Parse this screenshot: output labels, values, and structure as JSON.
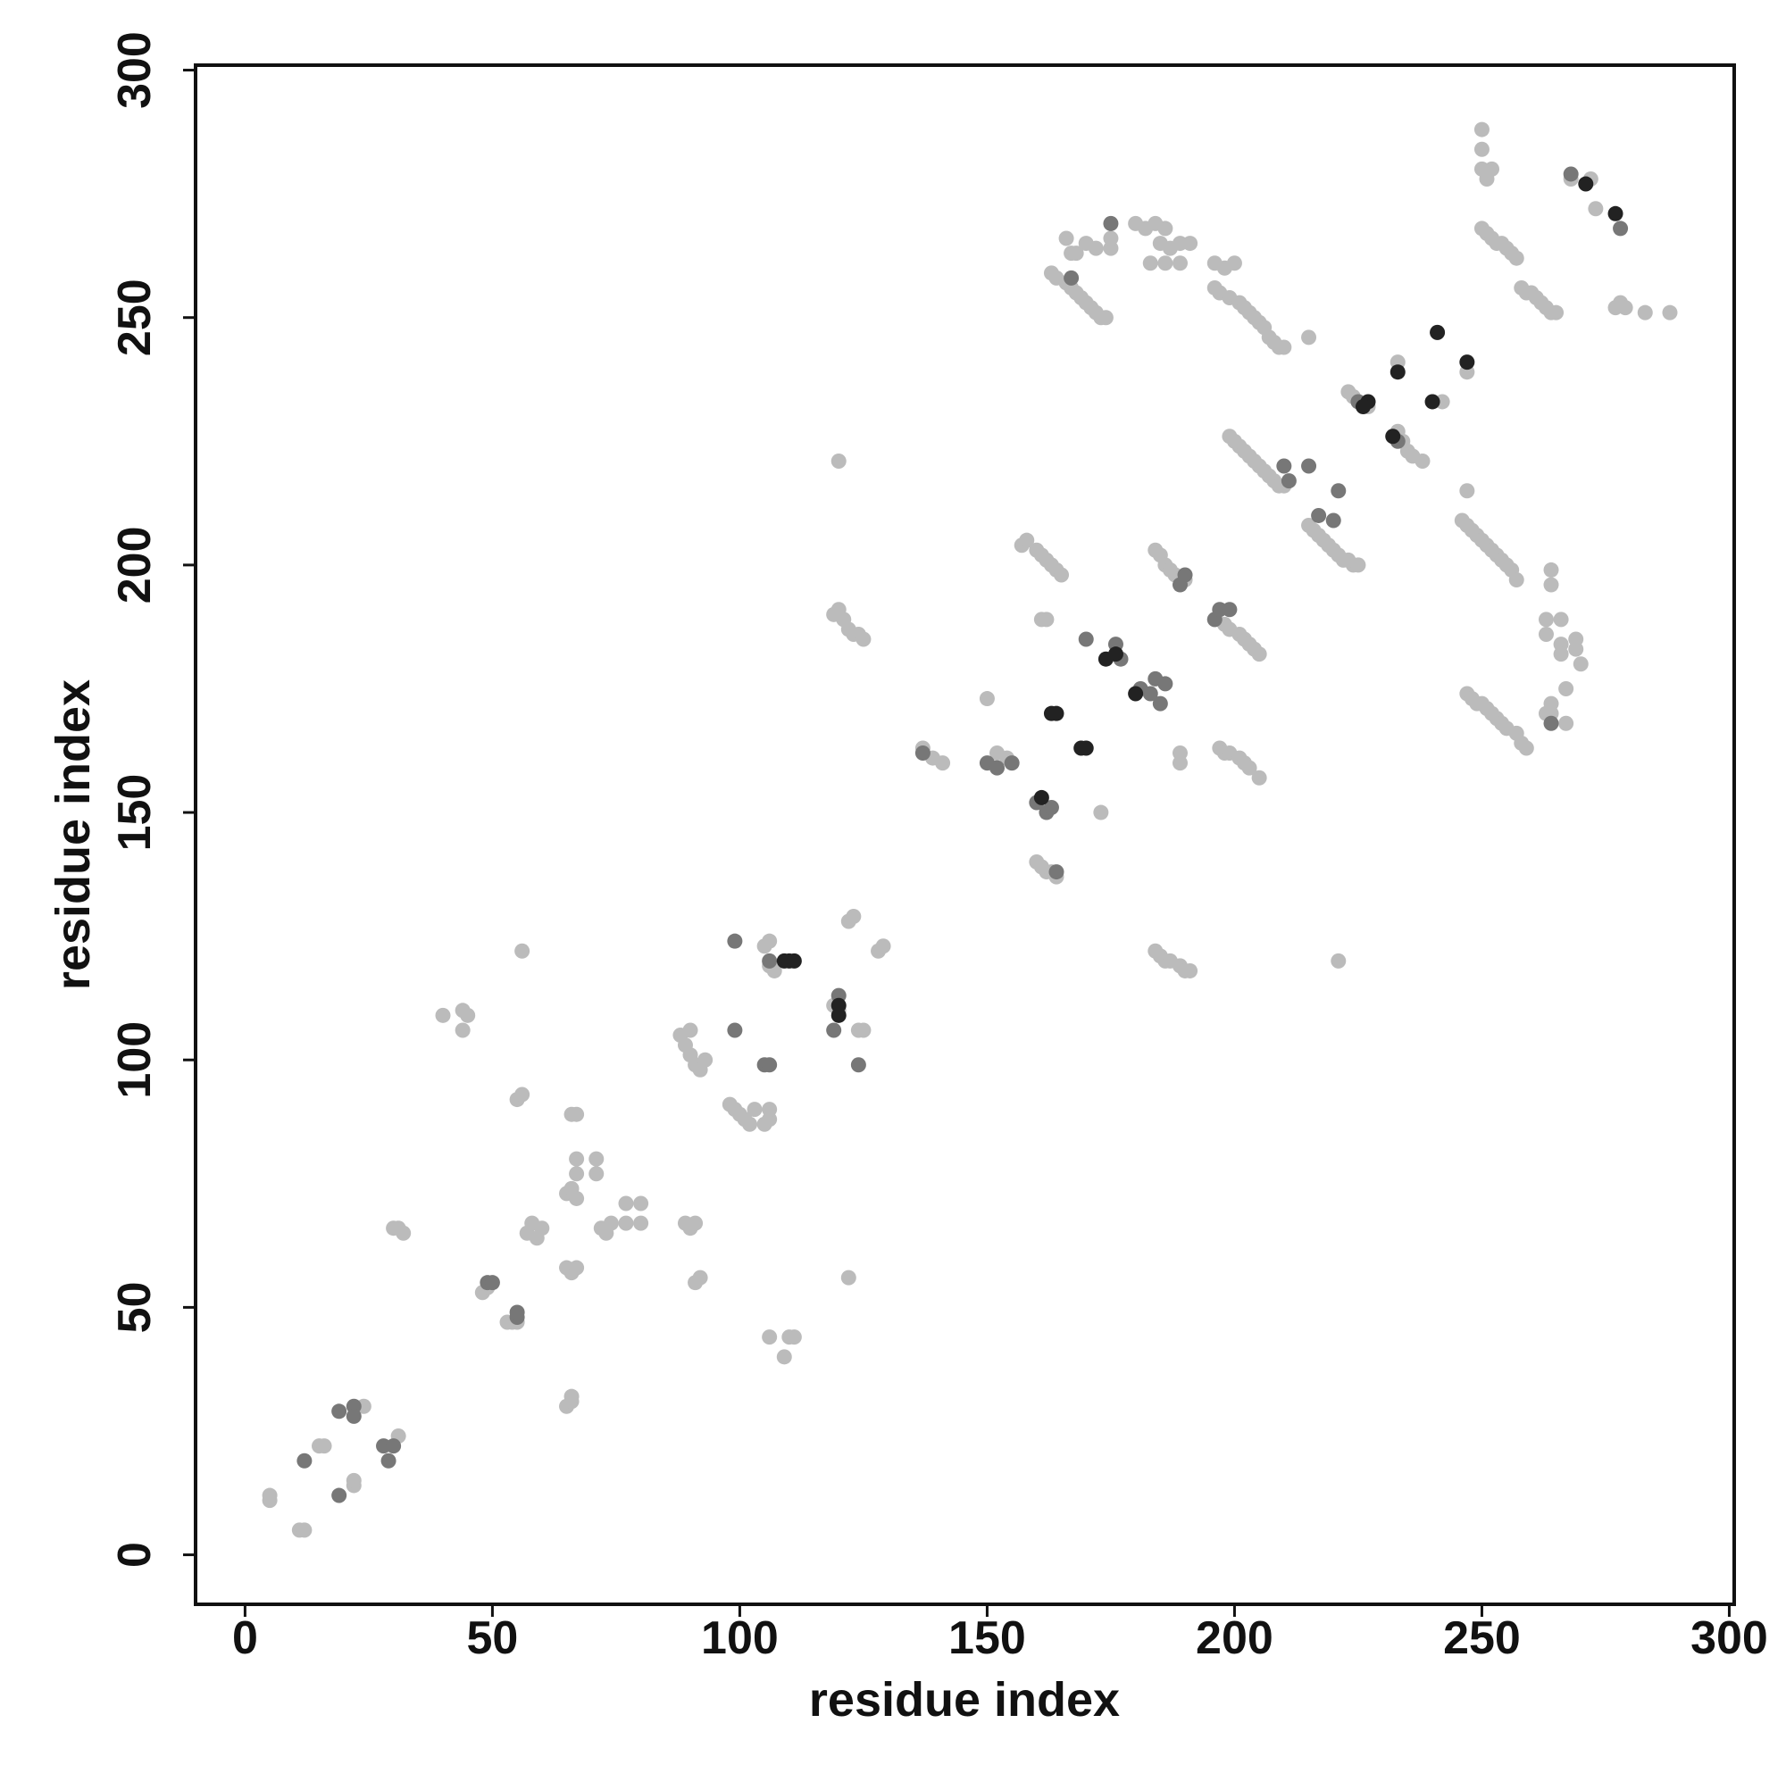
{
  "chart_data": {
    "type": "scatter",
    "xlabel": "residue index",
    "ylabel": "residue index",
    "xlim": [
      -10,
      301
    ],
    "ylim": [
      -10,
      301
    ],
    "xticks": [
      0,
      50,
      100,
      150,
      200,
      250,
      300
    ],
    "yticks": [
      0,
      50,
      100,
      150,
      200,
      250,
      300
    ],
    "series": [
      {
        "color": "#bbbbbb",
        "x": [
          5,
          5,
          11,
          12,
          15,
          16,
          22,
          22,
          24,
          31,
          30,
          31,
          32,
          40,
          44,
          44,
          45,
          56,
          55,
          56,
          48,
          49,
          53,
          54,
          55,
          57,
          58,
          59,
          60,
          65,
          66,
          67,
          65,
          66,
          67,
          67,
          67,
          66,
          67,
          65,
          66,
          66,
          71,
          71,
          72,
          73,
          74,
          77,
          80,
          80,
          77,
          89,
          90,
          91,
          91,
          92,
          88,
          89,
          90,
          91,
          92,
          93,
          90,
          98,
          99,
          100,
          101,
          102,
          103,
          105,
          106,
          106,
          105,
          106,
          106,
          107,
          106,
          109,
          110,
          111,
          119,
          120,
          122,
          122,
          123,
          124,
          125,
          128,
          129,
          120,
          119,
          120,
          121,
          122,
          123,
          124,
          125,
          137,
          139,
          141,
          150,
          152,
          154,
          155,
          157,
          158,
          160,
          161,
          162,
          163,
          164,
          165,
          161,
          162,
          160,
          161,
          162,
          163,
          164,
          173,
          163,
          164,
          166,
          167,
          168,
          169,
          170,
          171,
          172,
          173,
          174,
          166,
          167,
          170,
          172,
          175,
          175,
          168,
          180,
          182,
          184,
          186,
          185,
          187,
          189,
          191,
          183,
          186,
          189,
          184,
          185,
          186,
          187,
          188,
          190,
          184,
          185,
          186,
          187,
          189,
          190,
          191,
          189,
          189,
          196,
          198,
          200,
          196,
          197,
          199,
          201,
          202,
          203,
          204,
          205,
          206,
          207,
          208,
          209,
          210,
          196,
          198,
          199,
          201,
          202,
          203,
          204,
          205,
          197,
          198,
          199,
          201,
          202,
          203,
          205,
          199,
          200,
          201,
          202,
          203,
          204,
          205,
          206,
          207,
          208,
          209,
          210,
          215,
          221,
          215,
          216,
          217,
          218,
          219,
          220,
          221,
          222,
          223,
          224,
          225,
          223,
          224,
          225,
          227,
          233,
          233,
          234,
          235,
          236,
          238,
          240,
          241,
          242,
          246,
          247,
          248,
          249,
          250,
          251,
          252,
          253,
          254,
          255,
          256,
          257,
          247,
          247,
          247,
          248,
          249,
          250,
          251,
          252,
          253,
          254,
          255,
          257,
          258,
          259,
          250,
          250,
          250,
          251,
          252,
          250,
          251,
          252,
          253,
          254,
          255,
          256,
          257,
          258,
          259,
          260,
          261,
          262,
          263,
          264,
          265,
          264,
          264,
          263,
          263,
          266,
          266,
          266,
          267,
          267,
          263,
          264,
          269,
          269,
          270,
          268,
          272,
          273,
          277,
          278,
          279,
          283,
          288,
          264
        ],
        "values": [
          11,
          12,
          5,
          5,
          22,
          22,
          14,
          15,
          30,
          24,
          66,
          66,
          65,
          109,
          110,
          106,
          109,
          122,
          92,
          93,
          53,
          54,
          47,
          47,
          47,
          65,
          67,
          64,
          66,
          58,
          57,
          58,
          73,
          74,
          72,
          77,
          80,
          89,
          89,
          30,
          31,
          32,
          77,
          80,
          66,
          65,
          67,
          71,
          71,
          67,
          67,
          67,
          66,
          67,
          55,
          56,
          105,
          103,
          101,
          99,
          98,
          100,
          106,
          91,
          90,
          89,
          88,
          87,
          90,
          87,
          88,
          90,
          123,
          124,
          119,
          118,
          44,
          40,
          44,
          44,
          111,
          110,
          56,
          128,
          129,
          106,
          106,
          122,
          123,
          221,
          190,
          191,
          189,
          187,
          186,
          186,
          185,
          163,
          161,
          160,
          173,
          162,
          161,
          160,
          204,
          205,
          203,
          202,
          201,
          200,
          199,
          198,
          189,
          189,
          140,
          139,
          138,
          138,
          137,
          150,
          259,
          258,
          257,
          256,
          255,
          254,
          253,
          252,
          251,
          250,
          250,
          266,
          263,
          265,
          264,
          264,
          266,
          263,
          269,
          268,
          269,
          268,
          265,
          264,
          265,
          265,
          261,
          261,
          261,
          203,
          202,
          200,
          199,
          198,
          197,
          122,
          121,
          120,
          120,
          119,
          118,
          118,
          162,
          160,
          261,
          260,
          261,
          256,
          255,
          254,
          253,
          252,
          251,
          250,
          249,
          248,
          246,
          245,
          244,
          244,
          189,
          188,
          187,
          186,
          185,
          184,
          183,
          182,
          163,
          162,
          162,
          161,
          160,
          159,
          157,
          226,
          225,
          224,
          223,
          222,
          221,
          220,
          219,
          218,
          217,
          216,
          216,
          246,
          120,
          208,
          207,
          206,
          205,
          204,
          203,
          202,
          201,
          201,
          200,
          200,
          235,
          234,
          233,
          232,
          241,
          227,
          225,
          223,
          222,
          221,
          233,
          247,
          233,
          209,
          208,
          207,
          206,
          205,
          204,
          203,
          202,
          201,
          200,
          199,
          197,
          215,
          239,
          174,
          173,
          172,
          172,
          171,
          170,
          169,
          168,
          167,
          166,
          164,
          163,
          288,
          284,
          280,
          278,
          280,
          268,
          267,
          266,
          265,
          265,
          264,
          263,
          262,
          256,
          255,
          255,
          254,
          253,
          252,
          251,
          251,
          199,
          196,
          189,
          186,
          189,
          184,
          182,
          175,
          168,
          170,
          172,
          185,
          183,
          180,
          278,
          278,
          272,
          252,
          253,
          252,
          251,
          251,
          170
        ]
      },
      {
        "color": "#777777",
        "x": [
          12,
          19,
          19,
          22,
          22,
          28,
          29,
          30,
          49,
          50,
          55,
          55,
          99,
          99,
          105,
          106,
          106,
          119,
          120,
          124,
          137,
          150,
          152,
          155,
          160,
          162,
          163,
          164,
          167,
          175,
          170,
          176,
          177,
          181,
          183,
          184,
          185,
          186,
          189,
          190,
          196,
          197,
          199,
          215,
          217,
          220,
          221,
          211,
          225,
          233,
          264,
          268,
          278,
          210
        ],
        "values": [
          19,
          12,
          29,
          30,
          28,
          22,
          19,
          22,
          55,
          55,
          48,
          49,
          124,
          106,
          99,
          99,
          120,
          106,
          113,
          99,
          162,
          160,
          159,
          160,
          152,
          150,
          151,
          138,
          258,
          269,
          185,
          184,
          181,
          175,
          174,
          177,
          172,
          176,
          196,
          198,
          189,
          191,
          191,
          220,
          210,
          209,
          215,
          217,
          233,
          225,
          168,
          279,
          268,
          220
        ]
      },
      {
        "color": "#222222",
        "x": [
          109,
          110,
          111,
          120,
          120,
          163,
          164,
          169,
          170,
          161,
          174,
          180,
          176,
          247,
          241,
          227,
          226,
          233,
          232,
          240,
          271,
          277
        ],
        "values": [
          120,
          120,
          120,
          109,
          111,
          170,
          170,
          163,
          163,
          153,
          181,
          174,
          182,
          241,
          247,
          233,
          232,
          239,
          226,
          233,
          277,
          271
        ]
      }
    ]
  }
}
